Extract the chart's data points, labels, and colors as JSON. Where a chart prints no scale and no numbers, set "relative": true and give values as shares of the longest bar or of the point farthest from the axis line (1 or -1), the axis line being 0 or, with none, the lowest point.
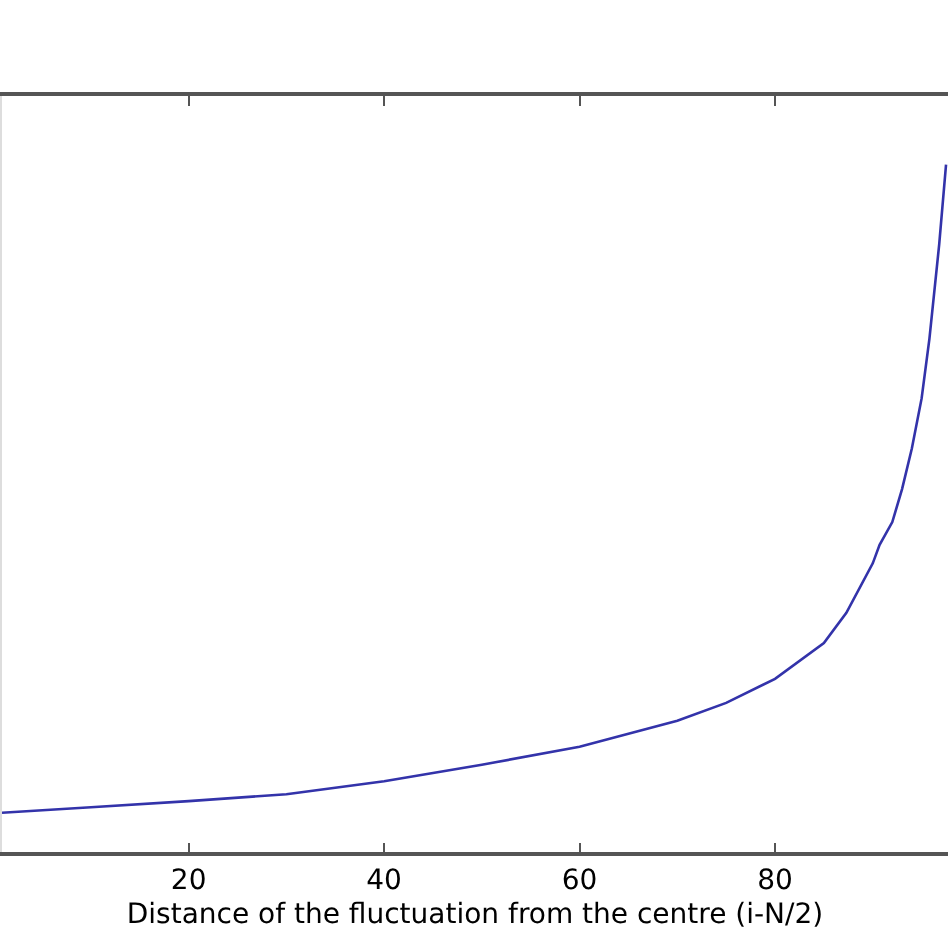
{
  "chart_data": {
    "type": "line",
    "relative": true,
    "xlabel": "Distance of the fluctuation from the centre (i-N/2)",
    "xlim": [
      0.9,
      97.7
    ],
    "xticks": [
      20,
      40,
      60,
      80
    ],
    "marker": "none",
    "line_style": "solid",
    "series": [
      {
        "color": "#3333aa",
        "x": [
          0.9,
          10,
          20,
          30,
          40,
          50,
          60,
          70,
          75,
          80,
          85,
          87.3,
          90,
          90.7,
          92,
          93,
          94,
          95,
          95.8,
          96.8,
          97.5
        ],
        "values": [
          0.057,
          0.065,
          0.074,
          0.084,
          0.103,
          0.127,
          0.153,
          0.191,
          0.217,
          0.252,
          0.304,
          0.348,
          0.42,
          0.447,
          0.48,
          0.528,
          0.587,
          0.66,
          0.747,
          0.884,
          1.0
        ]
      }
    ]
  }
}
